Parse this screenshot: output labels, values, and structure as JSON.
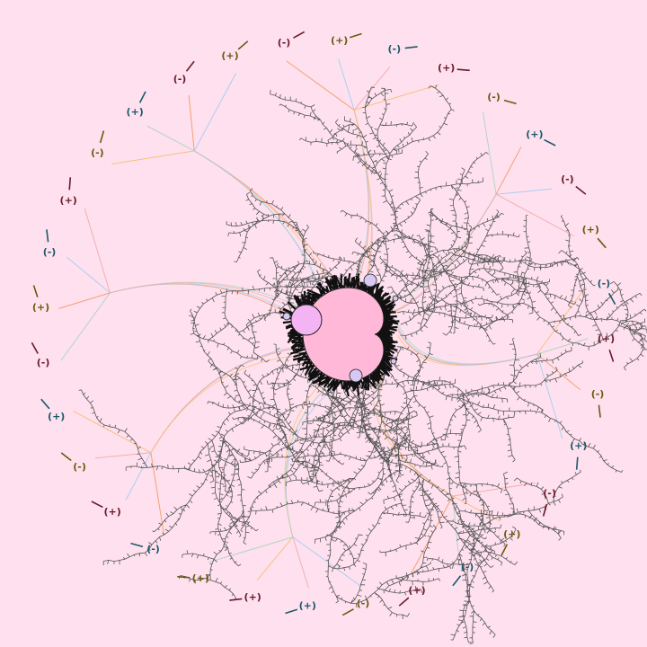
{
  "labels": [
    {
      "text": "(-)"
    },
    {
      "text": "(+)"
    },
    {
      "text": "(-)"
    },
    {
      "text": "(+)"
    },
    {
      "text": "(-)"
    },
    {
      "text": "(+)"
    },
    {
      "text": "(-)"
    },
    {
      "text": "(+)"
    },
    {
      "text": "(-)"
    },
    {
      "text": "(+)"
    },
    {
      "text": "(-)"
    },
    {
      "text": "(+)"
    },
    {
      "text": "(-)"
    },
    {
      "text": "(+)"
    },
    {
      "text": "(-)"
    },
    {
      "text": "(+)"
    },
    {
      "text": "(-)"
    },
    {
      "text": "(+)"
    },
    {
      "text": "(+)"
    },
    {
      "text": "(+)"
    },
    {
      "text": "(-)"
    },
    {
      "text": "(+)"
    },
    {
      "text": "(-)"
    },
    {
      "text": "(+)"
    },
    {
      "text": "(-)"
    },
    {
      "text": "(+)"
    },
    {
      "text": "(-)"
    },
    {
      "text": "(+)"
    },
    {
      "text": "(-)"
    },
    {
      "text": "(+)"
    },
    {
      "text": "(-)"
    },
    {
      "text": "(+)"
    }
  ]
}
